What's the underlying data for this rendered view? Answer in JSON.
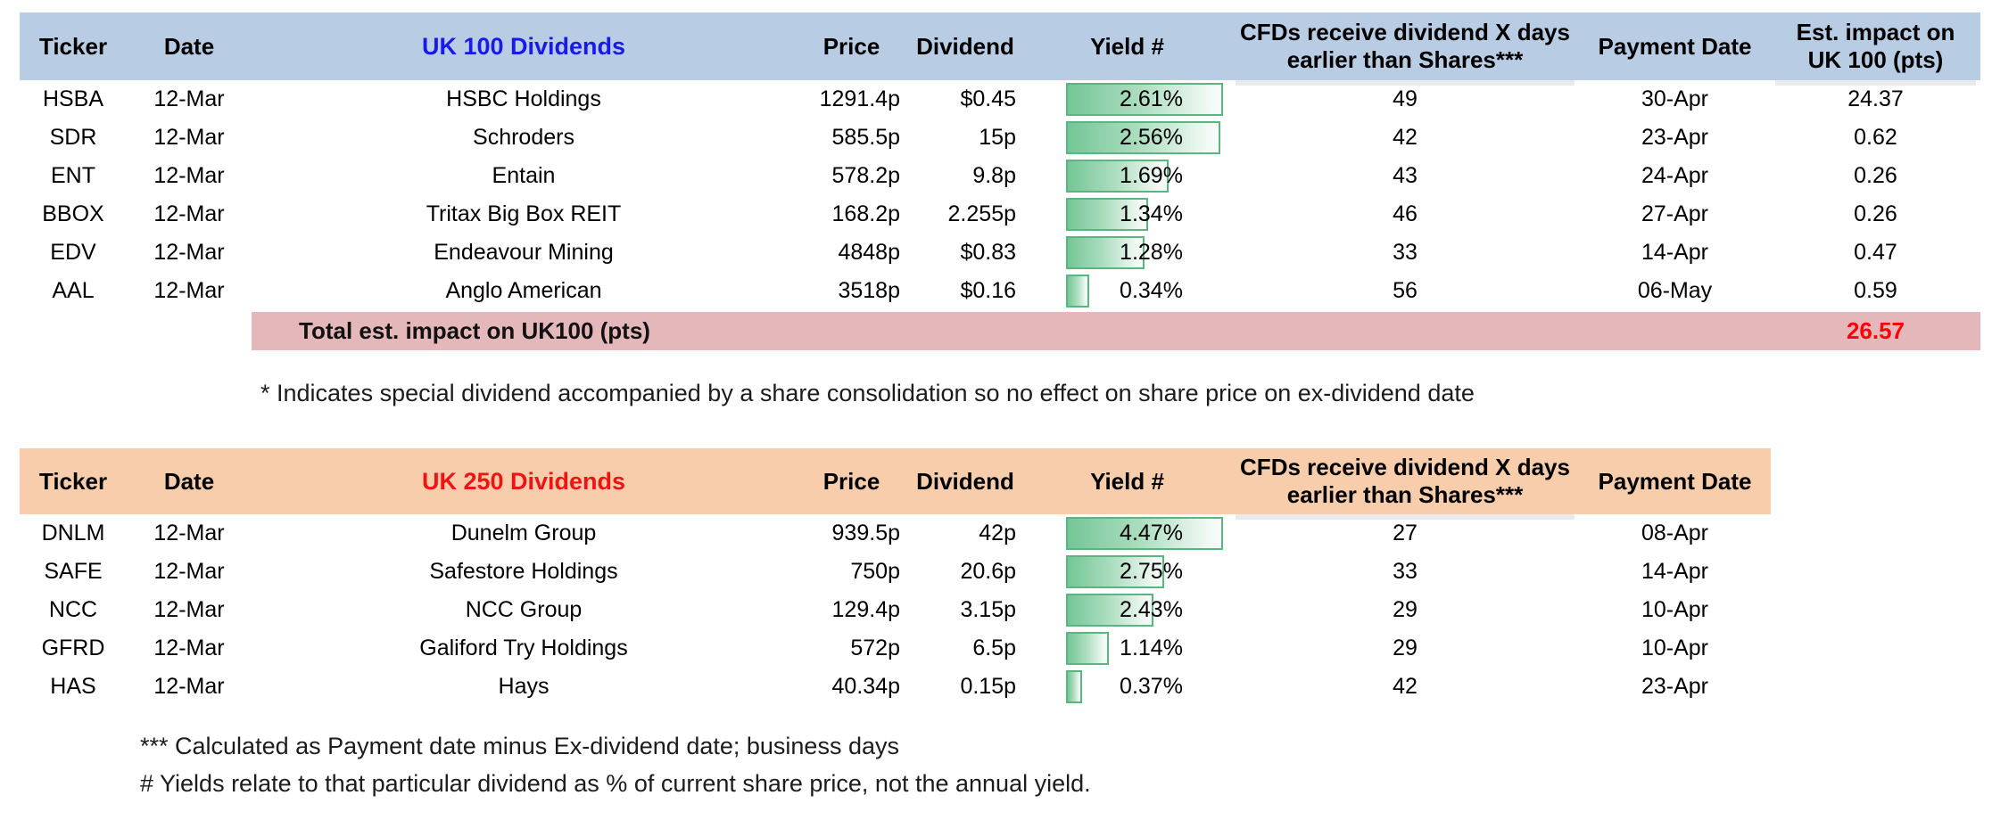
{
  "colors": {
    "uk100_header_bg": "#b8cce4",
    "uk250_header_bg": "#f8cdab",
    "total_row_bg": "#e4b8ba",
    "uk100_title_text": "#1a1ae6",
    "uk250_title_text": "#ee1414",
    "total_value_text": "#fb0207",
    "databar_border": "#5ab57e",
    "databar_fill": "#74c697"
  },
  "tables": [
    {
      "id": "uk100",
      "headers": {
        "ticker": "Ticker",
        "date": "Date",
        "company": "UK 100 Dividends",
        "price": "Price",
        "dividend": "Dividend",
        "yield": "Yield #",
        "cfds_line1": "CFDs receive dividend X days",
        "cfds_line2": "earlier than Shares***",
        "payment": "Payment Date",
        "impact_line1": "Est. impact on",
        "impact_line2": "UK 100 (pts)"
      },
      "rows": [
        {
          "ticker": "HSBA",
          "date": "12-Mar",
          "company": "HSBC Holdings",
          "price": "1291.4p",
          "dividend": "$0.45",
          "yield": "2.61%",
          "yield_value": 2.61,
          "days": "49",
          "payment": "30-Apr",
          "impact": "24.37"
        },
        {
          "ticker": "SDR",
          "date": "12-Mar",
          "company": "Schroders",
          "price": "585.5p",
          "dividend": "15p",
          "yield": "2.56%",
          "yield_value": 2.56,
          "days": "42",
          "payment": "23-Apr",
          "impact": "0.62"
        },
        {
          "ticker": "ENT",
          "date": "12-Mar",
          "company": "Entain",
          "price": "578.2p",
          "dividend": "9.8p",
          "yield": "1.69%",
          "yield_value": 1.69,
          "days": "43",
          "payment": "24-Apr",
          "impact": "0.26"
        },
        {
          "ticker": "BBOX",
          "date": "12-Mar",
          "company": "Tritax Big Box REIT",
          "price": "168.2p",
          "dividend": "2.255p",
          "yield": "1.34%",
          "yield_value": 1.34,
          "days": "46",
          "payment": "27-Apr",
          "impact": "0.26"
        },
        {
          "ticker": "EDV",
          "date": "12-Mar",
          "company": "Endeavour Mining",
          "price": "4848p",
          "dividend": "$0.83",
          "yield": "1.28%",
          "yield_value": 1.28,
          "days": "33",
          "payment": "14-Apr",
          "impact": "0.47"
        },
        {
          "ticker": "AAL",
          "date": "12-Mar",
          "company": "Anglo American",
          "price": "3518p",
          "dividend": "$0.16",
          "yield": "0.34%",
          "yield_value": 0.34,
          "days": "56",
          "payment": "06-May",
          "impact": "0.59"
        }
      ],
      "total": {
        "label": "Total est. impact on UK100 (pts)",
        "value": "26.57"
      }
    },
    {
      "id": "uk250",
      "headers": {
        "ticker": "Ticker",
        "date": "Date",
        "company": "UK 250 Dividends",
        "price": "Price",
        "dividend": "Dividend",
        "yield": "Yield #",
        "cfds_line1": "CFDs receive dividend X days",
        "cfds_line2": "earlier than Shares***",
        "payment": "Payment Date"
      },
      "rows": [
        {
          "ticker": "DNLM",
          "date": "12-Mar",
          "company": "Dunelm Group",
          "price": "939.5p",
          "dividend": "42p",
          "yield": "4.47%",
          "yield_value": 4.47,
          "days": "27",
          "payment": "08-Apr"
        },
        {
          "ticker": "SAFE",
          "date": "12-Mar",
          "company": "Safestore Holdings",
          "price": "750p",
          "dividend": "20.6p",
          "yield": "2.75%",
          "yield_value": 2.75,
          "days": "33",
          "payment": "14-Apr"
        },
        {
          "ticker": "NCC",
          "date": "12-Mar",
          "company": "NCC Group",
          "price": "129.4p",
          "dividend": "3.15p",
          "yield": "2.43%",
          "yield_value": 2.43,
          "days": "29",
          "payment": "10-Apr"
        },
        {
          "ticker": "GFRD",
          "date": "12-Mar",
          "company": "Galiford Try Holdings",
          "price": "572p",
          "dividend": "6.5p",
          "yield": "1.14%",
          "yield_value": 1.14,
          "days": "29",
          "payment": "10-Apr"
        },
        {
          "ticker": "HAS",
          "date": "12-Mar",
          "company": "Hays",
          "price": "40.34p",
          "dividend": "0.15p",
          "yield": "0.37%",
          "yield_value": 0.37,
          "days": "42",
          "payment": "23-Apr"
        }
      ]
    }
  ],
  "notes": {
    "consolidation": "* Indicates special dividend accompanied by a share consolidation so no effect on share price on ex-dividend date",
    "calculated": "*** Calculated as Payment date minus Ex-dividend date; business days",
    "yields": "# Yields relate to that particular dividend as % of current share price, not the annual yield."
  }
}
